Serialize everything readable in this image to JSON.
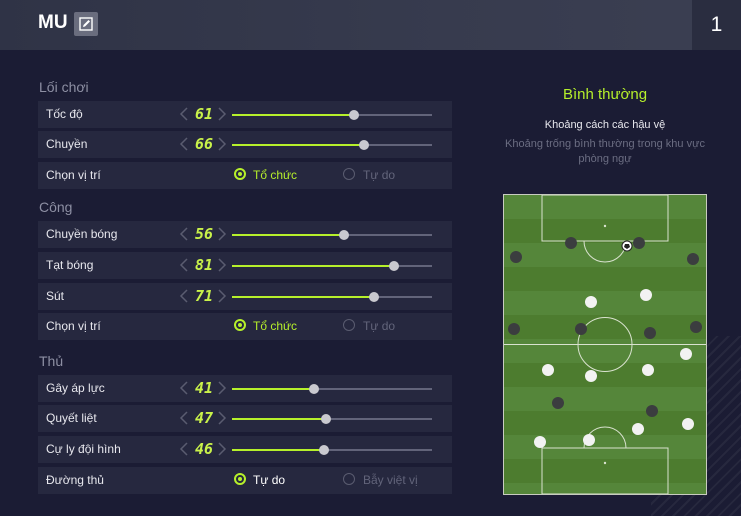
{
  "header": {
    "team_name": "MU",
    "page_number": "1"
  },
  "sections": [
    {
      "title": "Lối chơi"
    },
    {
      "title": "Công"
    },
    {
      "title": "Thủ"
    }
  ],
  "rows": [
    {
      "label": "Tốc độ",
      "value": "61",
      "level": 0.61
    },
    {
      "label": "Chuyền",
      "value": "66",
      "level": 0.66
    },
    {
      "label": "Chọn vị trí",
      "option_a": "Tổ chức",
      "option_b": "Tự do",
      "selected": "a"
    },
    {
      "label": "Chuyền bóng",
      "value": "56",
      "level": 0.56
    },
    {
      "label": "Tạt bóng",
      "value": "81",
      "level": 0.81
    },
    {
      "label": "Sút",
      "value": "71",
      "level": 0.71
    },
    {
      "label": "Chọn vị trí",
      "option_a": "Tổ chức",
      "option_b": "Tự do",
      "selected": "a"
    },
    {
      "label": "Gây áp lực",
      "value": "41",
      "level": 0.41
    },
    {
      "label": "Quyết liệt",
      "value": "47",
      "level": 0.47
    },
    {
      "label": "Cự ly đội hình",
      "value": "46",
      "level": 0.46
    },
    {
      "label": "Đường thủ",
      "option_a": "Tự do",
      "option_b": "Bẫy việt vị",
      "selected": "a"
    }
  ],
  "preview": {
    "title": "Bình thường",
    "subtitle": "Khoảng cách các hậu vệ",
    "description": "Khoảng trống bình thường trong khu vực phòng ngự"
  },
  "colors": {
    "accent": "#b6f02b",
    "background": "#1b1c34",
    "row_bg": "#26283f",
    "pitch_green": "#4d7c2f"
  },
  "icons": {
    "edit": "edit-icon",
    "left": "chevron-left-icon",
    "right": "chevron-right-icon",
    "ball": "ball-icon"
  }
}
